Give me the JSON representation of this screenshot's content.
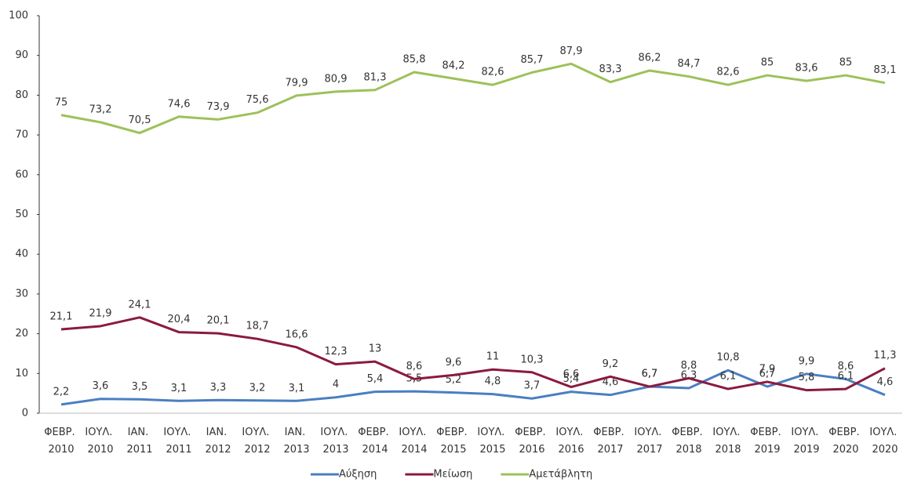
{
  "chart_data": {
    "type": "line",
    "categories": [
      "ΦΕΒΡ. 2010",
      "ΙΟΥΛ. 2010",
      "ΙΑΝ. 2011",
      "ΙΟΥΛ. 2011",
      "ΙΑΝ. 2012",
      "ΙΟΥΛ. 2012",
      "ΙΑΝ. 2013",
      "ΙΟΥΛ. 2013",
      "ΦΕΒΡ. 2014",
      "ΙΟΥΛ. 2014",
      "ΦΕΒΡ. 2015",
      "ΙΟΥΛ. 2015",
      "ΦΕΒΡ. 2016",
      "ΙΟΥΛ. 2016",
      "ΦΕΒΡ. 2017",
      "ΙΟΥΛ. 2017",
      "ΦΕΒΡ. 2018",
      "ΙΟΥΛ. 2018",
      "ΦΕΒΡ. 2019",
      "ΙΟΥΛ. 2019",
      "ΦΕΒΡ. 2020",
      "ΙΟΥΛ. 2020"
    ],
    "series": [
      {
        "name": "Αύξηση",
        "color": "#4a7fc1",
        "values": [
          2.2,
          3.6,
          3.5,
          3.1,
          3.3,
          3.2,
          3.1,
          4,
          5.4,
          5.5,
          5.2,
          4.8,
          3.7,
          5.4,
          4.6,
          6.7,
          6.3,
          10.8,
          6.7,
          9.9,
          8.6,
          4.6
        ],
        "value_labels": [
          "2,2",
          "3,6",
          "3,5",
          "3,1",
          "3,3",
          "3,2",
          "3,1",
          "4",
          "5,4",
          "5,5",
          "5,2",
          "4,8",
          "3,7",
          "5,4",
          "4,6",
          "6,7",
          "6,3",
          "10,8",
          "6,7",
          "9,9",
          "8,6",
          "4,6"
        ]
      },
      {
        "name": "Μείωση",
        "color": "#8b1a3f",
        "values": [
          21.1,
          21.9,
          24.1,
          20.4,
          20.1,
          18.7,
          16.6,
          12.3,
          13,
          8.6,
          9.6,
          11,
          10.3,
          6.6,
          9.2,
          6.7,
          8.8,
          6.1,
          7.9,
          5.8,
          6.1,
          11.3
        ],
        "value_labels": [
          "21,1",
          "21,9",
          "24,1",
          "20,4",
          "20,1",
          "18,7",
          "16,6",
          "12,3",
          "13",
          "8,6",
          "9,6",
          "11",
          "10,3",
          "6,6",
          "9,2",
          "6,7",
          "8,8",
          "6,1",
          "7,9",
          "5,8",
          "6,1",
          "11,3"
        ]
      },
      {
        "name": "Αμετάβλητη",
        "color": "#9dc15a",
        "values": [
          75,
          73.2,
          70.5,
          74.6,
          73.9,
          75.6,
          79.9,
          80.9,
          81.3,
          85.8,
          84.2,
          82.6,
          85.7,
          87.9,
          83.3,
          86.2,
          84.7,
          82.6,
          85,
          83.6,
          85,
          83.1
        ],
        "value_labels": [
          "75",
          "73,2",
          "70,5",
          "74,6",
          "73,9",
          "75,6",
          "79,9",
          "80,9",
          "81,3",
          "85,8",
          "84,2",
          "82,6",
          "85,7",
          "87,9",
          "83,3",
          "86,2",
          "84,7",
          "82,6",
          "85",
          "83,6",
          "85",
          "83,1"
        ]
      }
    ],
    "ylim": [
      0,
      100
    ],
    "yticks": [
      0,
      10,
      20,
      30,
      40,
      50,
      60,
      70,
      80,
      90,
      100
    ],
    "legend": "bottom"
  }
}
